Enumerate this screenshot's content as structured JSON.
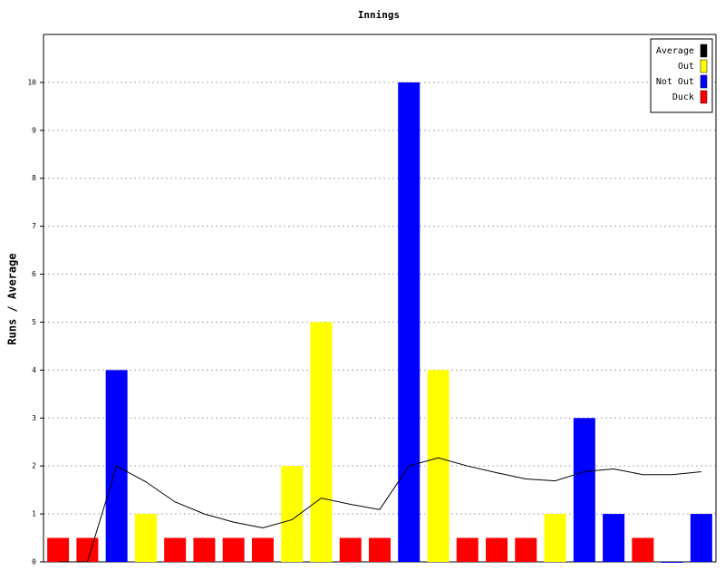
{
  "chart_data": {
    "type": "bar",
    "title": "Innings",
    "y_label": "Runs / Average",
    "categories": [
      null,
      null,
      null,
      null,
      null,
      null,
      null,
      null,
      null,
      null,
      null,
      null,
      null,
      null,
      null,
      null,
      null,
      null,
      null,
      null,
      null,
      null,
      null
    ],
    "ylim": [
      0,
      11
    ],
    "yticks": [
      0,
      1,
      2,
      3,
      4,
      5,
      6,
      7,
      8,
      9,
      10
    ],
    "grid": true,
    "legend": "top-right",
    "series": [
      {
        "name": "Average",
        "color": "#000000",
        "kind": "line",
        "values": [
          0,
          0,
          2,
          1.67,
          1.25,
          1,
          0.83,
          0.71,
          0.88,
          1.33,
          1.2,
          1.09,
          2,
          2.17,
          2,
          1.86,
          1.73,
          1.69,
          1.88,
          1.94,
          1.82,
          1.82,
          1.88
        ]
      },
      {
        "name": "Out",
        "color": "#ffff00",
        "kind": "bar",
        "values": [
          null,
          null,
          null,
          1,
          null,
          null,
          null,
          null,
          2,
          5,
          null,
          null,
          null,
          4,
          null,
          null,
          null,
          1,
          null,
          null,
          null,
          null,
          null
        ]
      },
      {
        "name": "Not Out",
        "color": "#0000ff",
        "kind": "bar",
        "values": [
          null,
          null,
          4,
          null,
          null,
          null,
          null,
          null,
          null,
          null,
          null,
          null,
          10,
          null,
          null,
          null,
          null,
          null,
          3,
          1,
          null,
          0,
          1
        ]
      },
      {
        "name": "Duck",
        "color": "#ff0000",
        "kind": "bar",
        "values": [
          0.5,
          0.5,
          null,
          null,
          0.5,
          0.5,
          0.5,
          0.5,
          null,
          null,
          0.5,
          0.5,
          null,
          null,
          0.5,
          0.5,
          0.5,
          null,
          null,
          null,
          0.5,
          null,
          null
        ]
      }
    ]
  }
}
